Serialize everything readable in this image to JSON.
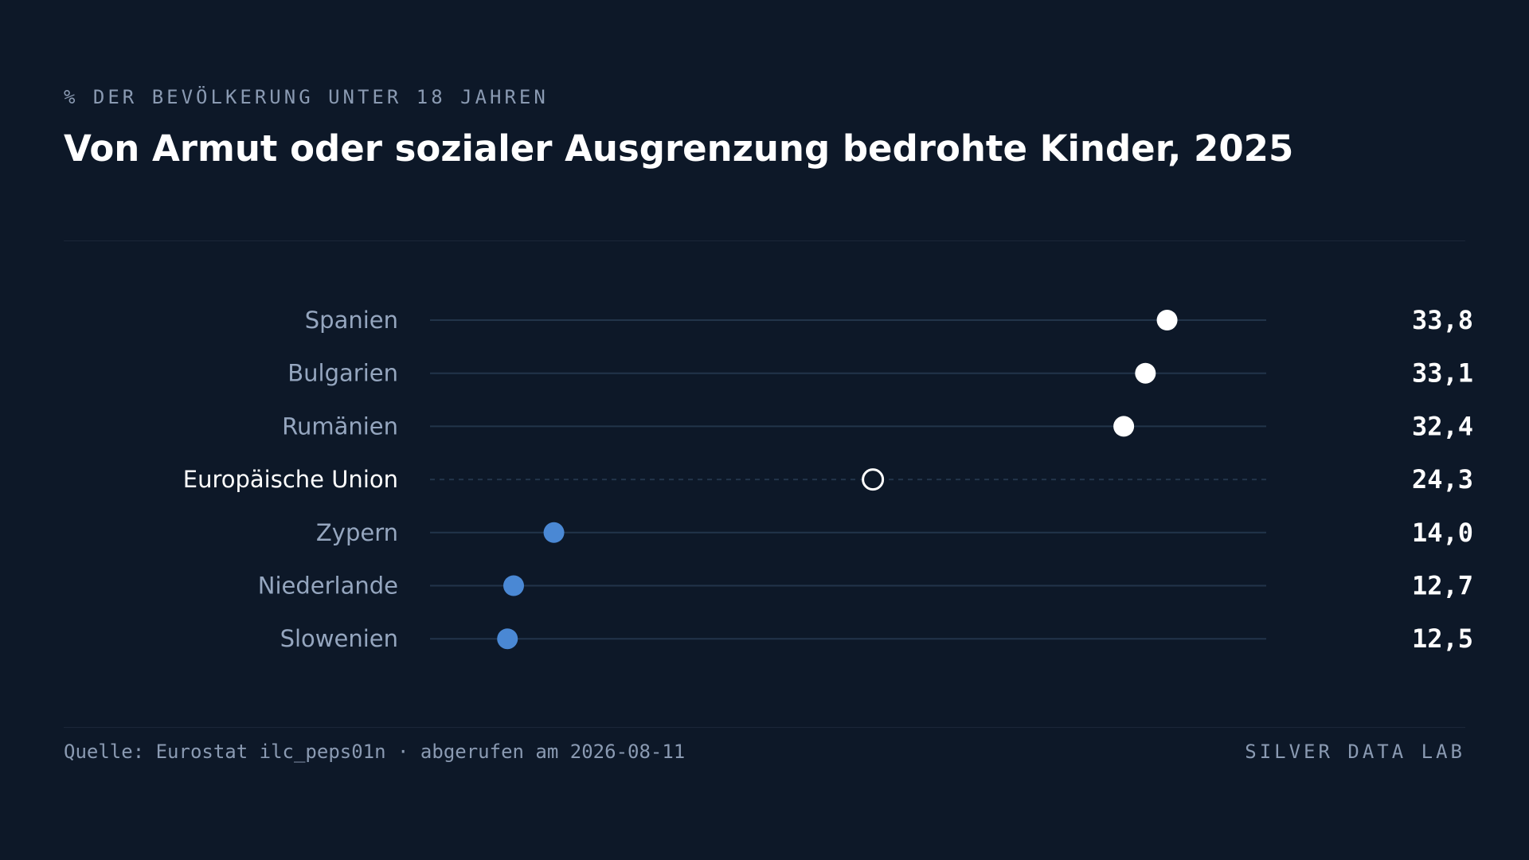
{
  "header": {
    "kicker": "% DER BEVÖLKERUNG UNTER 18 JAHREN",
    "title": "Von Armut oder sozialer Ausgrenzung bedrohte Kinder, 2025"
  },
  "footer": {
    "source": "Quelle: Eurostat ilc_peps01n · abgerufen am 2026-08-11",
    "brand": "SILVER DATA LAB"
  },
  "colors": {
    "background": "#0d1828",
    "high": "#ffffff",
    "low": "#4a88d4",
    "reference_ring": "#ffffff",
    "track": "#22344a"
  },
  "chart_data": {
    "type": "dot",
    "title": "Von Armut oder sozialer Ausgrenzung bedrohte Kinder, 2025",
    "subtitle": "% DER BEVÖLKERUNG UNTER 18 JAHREN",
    "xlim": [
      10,
      37
    ],
    "grid": false,
    "legend": "none",
    "categories": [
      "Spanien",
      "Bulgarien",
      "Rumänien",
      "Europäische Union",
      "Zypern",
      "Niederlande",
      "Slowenien"
    ],
    "values": [
      33.8,
      33.1,
      32.4,
      24.3,
      14.0,
      12.7,
      12.5
    ],
    "value_labels": [
      "33,8",
      "33,1",
      "32,4",
      "24,3",
      "14,0",
      "12,7",
      "12,5"
    ],
    "groups": [
      "high",
      "high",
      "high",
      "reference",
      "low",
      "low",
      "low"
    ]
  }
}
